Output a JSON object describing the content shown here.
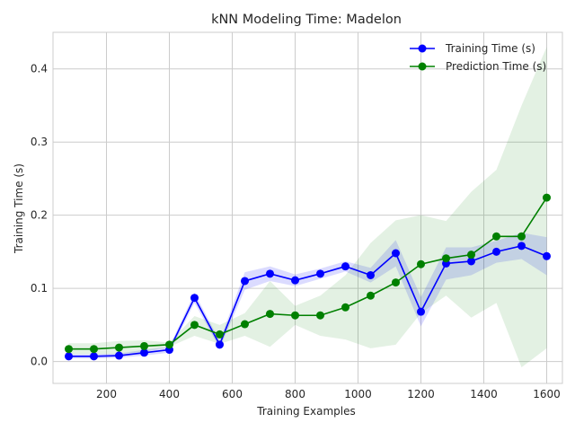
{
  "chart_data": {
    "type": "line",
    "title": "kNN Modeling Time: Madelon",
    "xlabel": "Training Examples",
    "ylabel": "Training Time (s)",
    "xlim": [
      30,
      1650
    ],
    "ylim": [
      -0.03,
      0.45
    ],
    "xticks": [
      200,
      400,
      600,
      800,
      1000,
      1200,
      1400,
      1600
    ],
    "yticks": [
      0.0,
      0.1,
      0.2,
      0.3,
      0.4
    ],
    "ytick_labels": [
      "0.0",
      "0.1",
      "0.2",
      "0.3",
      "0.4"
    ],
    "grid": true,
    "legend_position": "top-right",
    "x": [
      80,
      160,
      240,
      320,
      400,
      480,
      560,
      640,
      720,
      800,
      880,
      960,
      1040,
      1120,
      1200,
      1280,
      1360,
      1440,
      1520,
      1600
    ],
    "series": [
      {
        "name": "Training Time (s)",
        "color": "#0000ff",
        "values": [
          0.007,
          0.007,
          0.008,
          0.012,
          0.016,
          0.087,
          0.023,
          0.11,
          0.12,
          0.111,
          0.12,
          0.13,
          0.118,
          0.148,
          0.068,
          0.134,
          0.137,
          0.15,
          0.158,
          0.144
        ],
        "band_lower": [
          0.004,
          0.004,
          0.005,
          0.008,
          0.012,
          0.08,
          0.018,
          0.098,
          0.11,
          0.103,
          0.113,
          0.123,
          0.108,
          0.13,
          0.048,
          0.112,
          0.118,
          0.135,
          0.14,
          0.118
        ],
        "band_upper": [
          0.01,
          0.01,
          0.011,
          0.016,
          0.02,
          0.094,
          0.028,
          0.122,
          0.13,
          0.119,
          0.127,
          0.137,
          0.128,
          0.166,
          0.088,
          0.156,
          0.156,
          0.165,
          0.176,
          0.17
        ]
      },
      {
        "name": "Prediction Time (s)",
        "color": "#008000",
        "values": [
          0.017,
          0.017,
          0.019,
          0.021,
          0.023,
          0.05,
          0.037,
          0.051,
          0.065,
          0.063,
          0.063,
          0.074,
          0.09,
          0.108,
          0.133,
          0.141,
          0.146,
          0.171,
          0.171,
          0.224
        ],
        "band_lower": [
          0.01,
          0.01,
          0.01,
          0.013,
          0.02,
          0.035,
          0.024,
          0.035,
          0.02,
          0.05,
          0.035,
          0.03,
          0.018,
          0.023,
          0.066,
          0.09,
          0.06,
          0.08,
          -0.008,
          0.018
        ],
        "band_upper": [
          0.025,
          0.025,
          0.028,
          0.029,
          0.026,
          0.062,
          0.05,
          0.066,
          0.11,
          0.076,
          0.09,
          0.118,
          0.162,
          0.193,
          0.2,
          0.192,
          0.232,
          0.262,
          0.35,
          0.43
        ]
      }
    ]
  }
}
